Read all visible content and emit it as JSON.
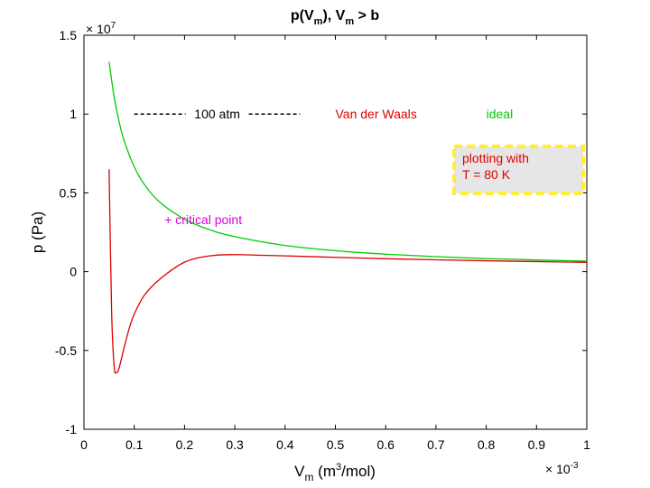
{
  "chart_data": {
    "type": "line",
    "title": "p(V_m), V_m > b",
    "title_parts": {
      "p1": "p(V",
      "s1": "m",
      "p2": "), V",
      "s2": "m",
      "p3": " > b"
    },
    "xlabel_parts": {
      "main": "V",
      "sub": "m",
      "open": " (m",
      "sup": "3",
      "close": "/mol)"
    },
    "ylabel": "p (Pa)",
    "x_multiplier": {
      "base": "× 10",
      "exp": "-3"
    },
    "y_multiplier": {
      "base": "× 10",
      "exp": "7"
    },
    "xlim": [
      0,
      1
    ],
    "ylim": [
      -1,
      1.5
    ],
    "x_ticks": [
      0,
      0.1,
      0.2,
      0.3,
      0.4,
      0.5,
      0.6,
      0.7,
      0.8,
      0.9,
      1
    ],
    "x_tick_labels": [
      "0",
      "0.1",
      "0.2",
      "0.3",
      "0.4",
      "0.5",
      "0.6",
      "0.7",
      "0.8",
      "0.9",
      "1"
    ],
    "y_ticks": [
      -1,
      -0.5,
      0,
      0.5,
      1,
      1.5
    ],
    "y_tick_labels": [
      "-1",
      "-0.5",
      "0",
      "0.5",
      "1",
      "1.5"
    ],
    "grid": false,
    "series": [
      {
        "name": "ideal",
        "color": "#00cc00",
        "x": [
          0.05,
          0.06,
          0.07,
          0.08,
          0.1,
          0.12,
          0.15,
          0.2,
          0.25,
          0.3,
          0.4,
          0.5,
          0.6,
          0.7,
          0.8,
          0.9,
          1.0
        ],
        "y": [
          1.33,
          1.11,
          0.95,
          0.83,
          0.665,
          0.554,
          0.443,
          0.333,
          0.266,
          0.222,
          0.166,
          0.133,
          0.111,
          0.095,
          0.083,
          0.074,
          0.067
        ]
      },
      {
        "name": "Van der Waals",
        "color": "#dd0000",
        "x": [
          0.05,
          0.055,
          0.06,
          0.065,
          0.07,
          0.08,
          0.09,
          0.1,
          0.12,
          0.15,
          0.2,
          0.25,
          0.3,
          0.35,
          0.4,
          0.5,
          0.6,
          0.7,
          0.8,
          0.9,
          1.0
        ],
        "y": [
          0.65,
          -0.25,
          -0.6,
          -0.64,
          -0.61,
          -0.48,
          -0.36,
          -0.27,
          -0.15,
          -0.05,
          0.06,
          0.1,
          0.108,
          0.104,
          0.1,
          0.091,
          0.082,
          0.075,
          0.069,
          0.064,
          0.059
        ]
      }
    ],
    "dashed_line": {
      "color": "#000000",
      "label": "100 atm",
      "x": [
        0.1,
        0.43
      ],
      "y": 1.0
    },
    "annotations": [
      {
        "text": "Van der Waals",
        "x": 0.5,
        "y": 1.0,
        "color": "#dd0000"
      },
      {
        "text": "ideal",
        "x": 0.8,
        "y": 1.0,
        "color": "#00cc00"
      },
      {
        "text": "+ critical point",
        "x": 0.16,
        "y": 0.33,
        "color": "#dd00dd"
      }
    ],
    "text_box": {
      "lines": [
        "plotting with",
        "T = 80 K"
      ],
      "text_color": "#dd0000",
      "border_color": "#ffee33",
      "fill_color": "#e6e6e6"
    }
  }
}
